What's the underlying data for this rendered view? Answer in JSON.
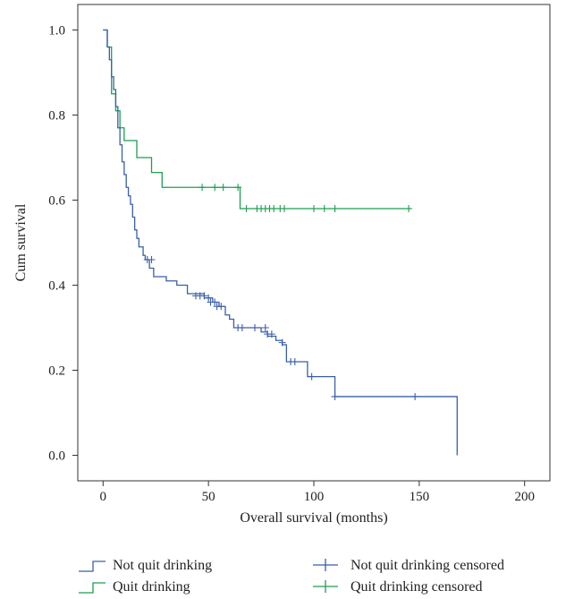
{
  "chart_data": {
    "type": "line",
    "subtype": "kaplan-meier step",
    "title": "",
    "xlabel": "Overall survival (months)",
    "ylabel": "Cum survival",
    "xlim": [
      -12,
      212
    ],
    "ylim": [
      -0.06,
      1.06
    ],
    "x_ticks": [
      0,
      50,
      100,
      150,
      200
    ],
    "x_tick_labels": [
      "0",
      "50",
      "100",
      "150",
      "200"
    ],
    "y_ticks": [
      0.0,
      0.2,
      0.4,
      0.6,
      0.8,
      1.0
    ],
    "y_tick_labels": [
      "0.0",
      "0.2",
      "0.4",
      "0.6",
      "0.8",
      "1.0"
    ],
    "grid": false,
    "legend_position": "bottom",
    "colors": {
      "not_quit": "#3a5fa8",
      "quit": "#1d9e52"
    },
    "series": [
      {
        "name": "Not quit drinking",
        "color": "#3a5fa8",
        "steps": [
          [
            0,
            1.0
          ],
          [
            2,
            0.96
          ],
          [
            3,
            0.93
          ],
          [
            4,
            0.89
          ],
          [
            5,
            0.86
          ],
          [
            6,
            0.82
          ],
          [
            7,
            0.77
          ],
          [
            8,
            0.73
          ],
          [
            9,
            0.69
          ],
          [
            10,
            0.66
          ],
          [
            11,
            0.63
          ],
          [
            12,
            0.61
          ],
          [
            13,
            0.59
          ],
          [
            14,
            0.56
          ],
          [
            15,
            0.53
          ],
          [
            16,
            0.51
          ],
          [
            17,
            0.49
          ],
          [
            19,
            0.47
          ],
          [
            20,
            0.46
          ],
          [
            22,
            0.44
          ],
          [
            24,
            0.42
          ],
          [
            30,
            0.41
          ],
          [
            35,
            0.4
          ],
          [
            40,
            0.38
          ],
          [
            48,
            0.37
          ],
          [
            52,
            0.36
          ],
          [
            55,
            0.35
          ],
          [
            58,
            0.33
          ],
          [
            60,
            0.32
          ],
          [
            62,
            0.3
          ],
          [
            75,
            0.29
          ],
          [
            78,
            0.28
          ],
          [
            82,
            0.27
          ],
          [
            85,
            0.26
          ],
          [
            87,
            0.22
          ],
          [
            97,
            0.185
          ],
          [
            110,
            0.138
          ],
          [
            168,
            0.0
          ]
        ],
        "end_x": 168
      },
      {
        "name": "Quit drinking",
        "color": "#1d9e52",
        "steps": [
          [
            0,
            1.0
          ],
          [
            2,
            0.96
          ],
          [
            4,
            0.85
          ],
          [
            6,
            0.81
          ],
          [
            8,
            0.77
          ],
          [
            10,
            0.74
          ],
          [
            16,
            0.7
          ],
          [
            23,
            0.665
          ],
          [
            28,
            0.63
          ],
          [
            65,
            0.58
          ]
        ],
        "end_x": 146
      },
      {
        "name": "Not quit drinking censored",
        "color": "#3a5fa8",
        "marker": "plus",
        "points": [
          [
            21,
            0.46
          ],
          [
            23,
            0.46
          ],
          [
            44,
            0.375
          ],
          [
            46,
            0.375
          ],
          [
            48,
            0.375
          ],
          [
            50,
            0.37
          ],
          [
            51,
            0.36
          ],
          [
            53,
            0.36
          ],
          [
            54,
            0.35
          ],
          [
            56,
            0.35
          ],
          [
            64,
            0.3
          ],
          [
            66,
            0.3
          ],
          [
            72,
            0.3
          ],
          [
            77,
            0.3
          ],
          [
            78,
            0.285
          ],
          [
            80,
            0.285
          ],
          [
            85,
            0.265
          ],
          [
            89,
            0.22
          ],
          [
            91,
            0.22
          ],
          [
            99,
            0.185
          ],
          [
            110,
            0.138
          ],
          [
            148,
            0.138
          ]
        ]
      },
      {
        "name": "Quit drinking censored",
        "color": "#1d9e52",
        "marker": "plus",
        "points": [
          [
            47,
            0.63
          ],
          [
            53,
            0.63
          ],
          [
            57,
            0.63
          ],
          [
            64,
            0.63
          ],
          [
            68,
            0.58
          ],
          [
            73,
            0.58
          ],
          [
            75,
            0.58
          ],
          [
            77,
            0.58
          ],
          [
            79,
            0.58
          ],
          [
            81,
            0.58
          ],
          [
            84,
            0.58
          ],
          [
            86,
            0.58
          ],
          [
            100,
            0.58
          ],
          [
            105,
            0.58
          ],
          [
            110,
            0.58
          ],
          [
            145,
            0.58
          ]
        ]
      }
    ],
    "legend": [
      {
        "label": "Not quit drinking",
        "kind": "step",
        "color": "#3a5fa8"
      },
      {
        "label": "Not quit drinking censored",
        "kind": "plus",
        "color": "#3a5fa8"
      },
      {
        "label": "Quit drinking",
        "kind": "step",
        "color": "#1d9e52"
      },
      {
        "label": "Quit drinking censored",
        "kind": "plus",
        "color": "#1d9e52"
      }
    ]
  }
}
